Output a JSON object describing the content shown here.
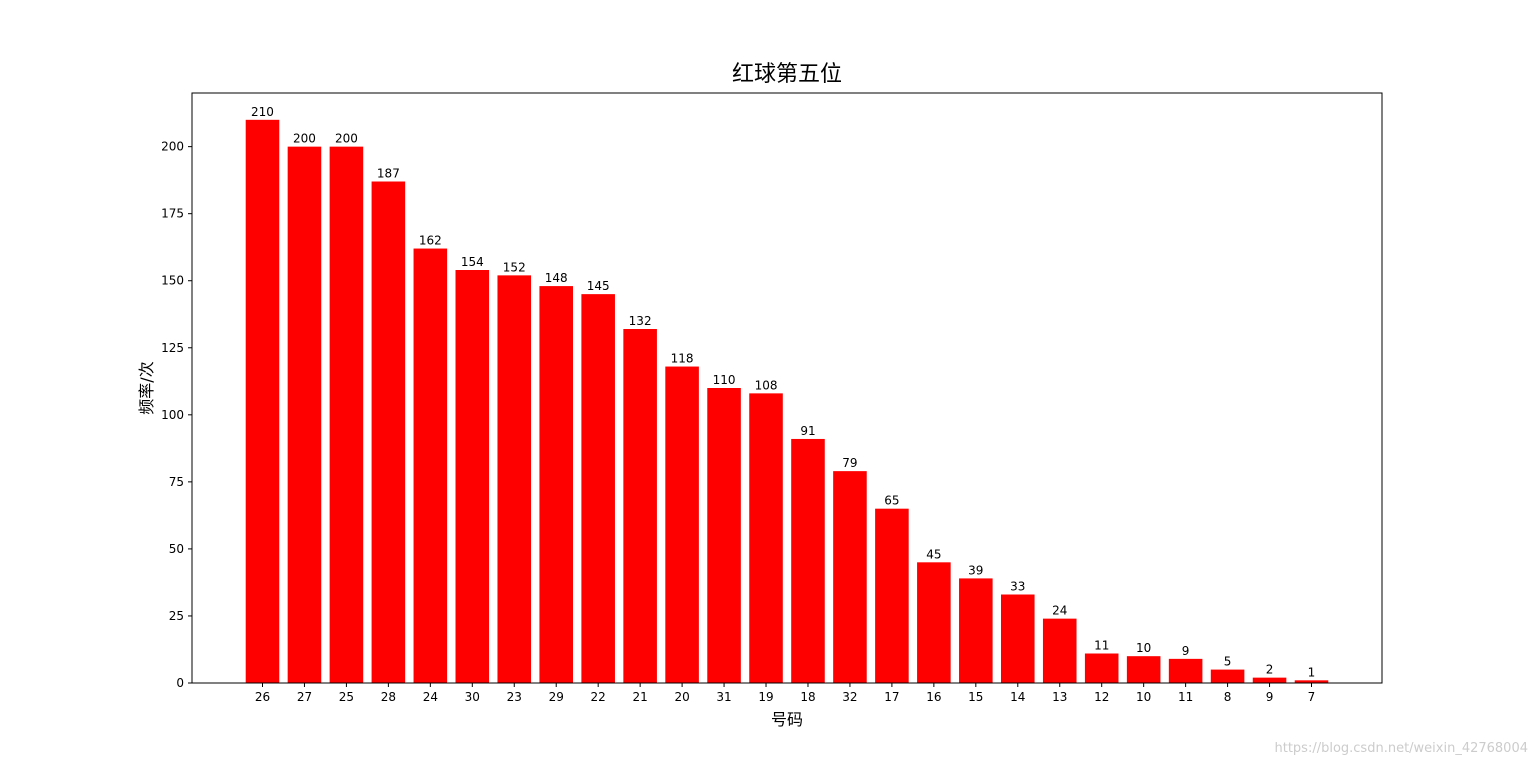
{
  "chart_data": {
    "type": "bar",
    "title": "红球第五位",
    "x_label": "号码",
    "y_label": "频率/次",
    "categories": [
      "26",
      "27",
      "25",
      "28",
      "24",
      "30",
      "23",
      "29",
      "22",
      "21",
      "20",
      "31",
      "19",
      "18",
      "32",
      "17",
      "16",
      "15",
      "14",
      "13",
      "12",
      "10",
      "11",
      "8",
      "9",
      "7"
    ],
    "values": [
      210,
      200,
      200,
      187,
      162,
      154,
      152,
      148,
      145,
      132,
      118,
      110,
      108,
      91,
      79,
      65,
      45,
      39,
      33,
      24,
      11,
      10,
      9,
      5,
      2,
      1
    ],
    "color": "#ff0000",
    "ylim": [
      0,
      220
    ],
    "yticks": [
      0,
      25,
      50,
      75,
      100,
      125,
      150,
      175,
      200
    ],
    "grid": false,
    "watermark": "https://blog.csdn.net/weixin_42768004"
  }
}
